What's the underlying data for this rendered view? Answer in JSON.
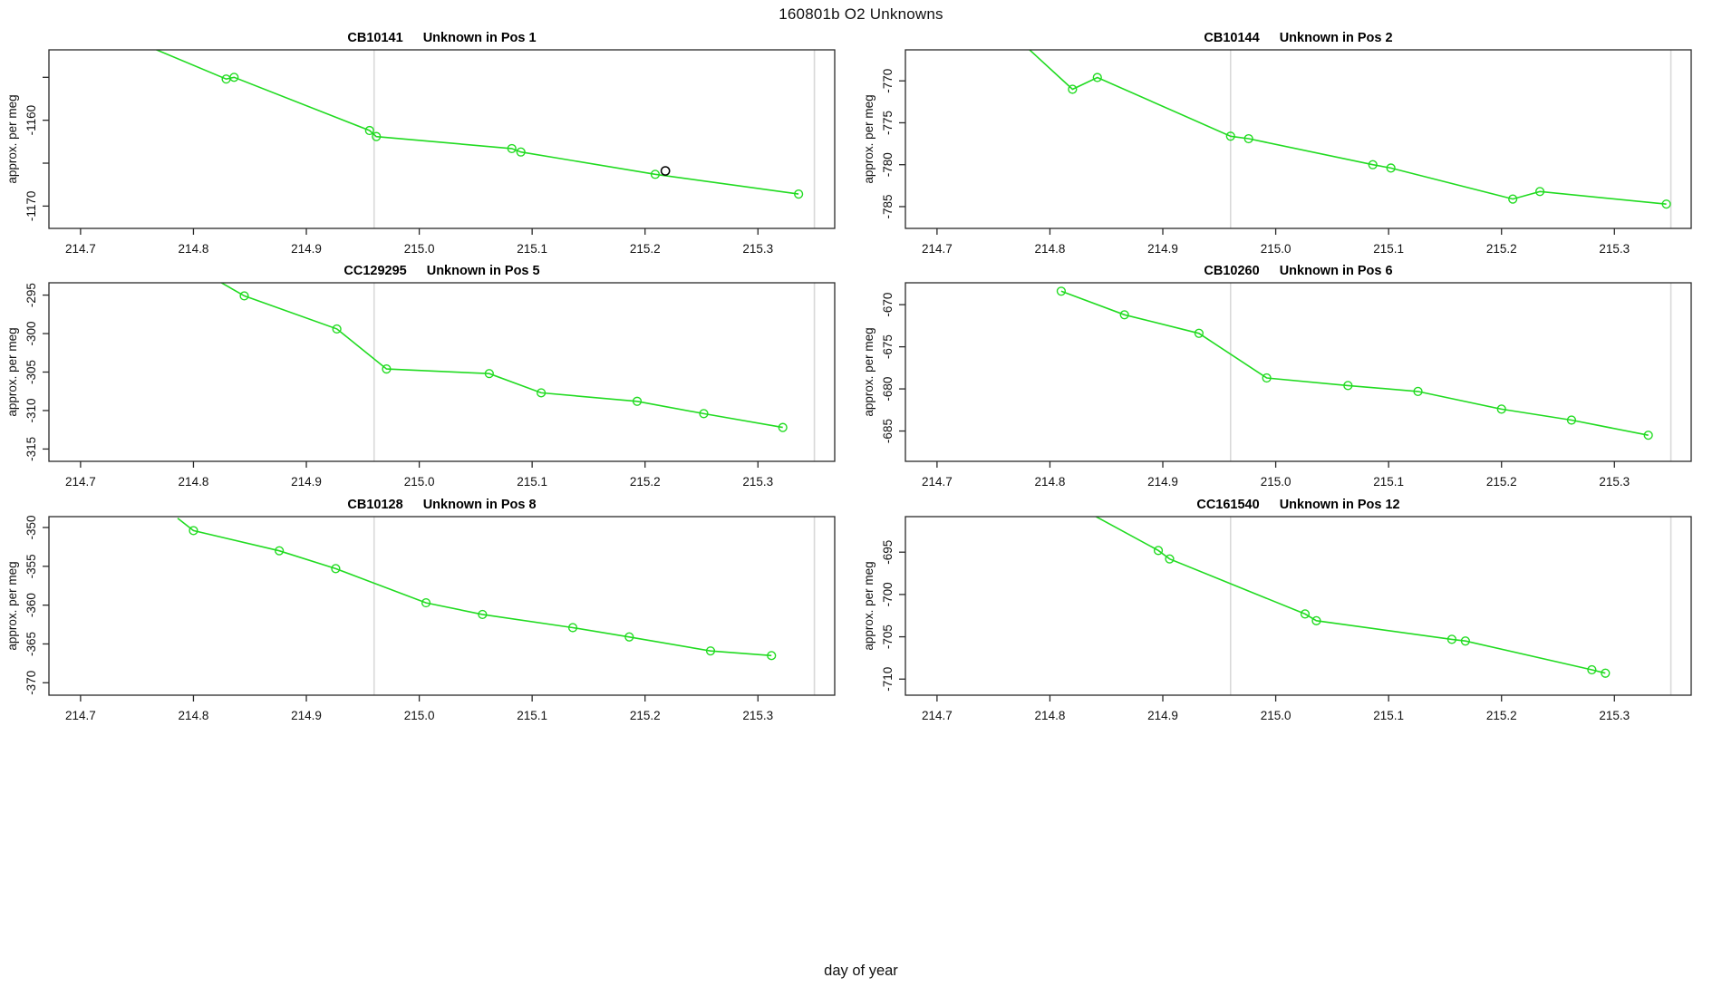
{
  "figure": {
    "title": "160801b  O2 Unknowns",
    "xlabel": "day of year",
    "colors": {
      "series": "#21db21",
      "special_point": "#000000",
      "guide_line": "#d9d9d9",
      "axis": "#2a2a2a",
      "background": "#ffffff"
    }
  },
  "chart_data": [
    {
      "type": "line",
      "title": "CB10141",
      "subtitle": "Unknown in Pos 1",
      "ylabel": "approx. per meg",
      "xlim": [
        214.672,
        215.368
      ],
      "ylim": [
        -1172.6,
        -1151.8
      ],
      "xticks": [
        {
          "v": 214.7,
          "label": "214.7"
        },
        {
          "v": 214.8,
          "label": "214.8"
        },
        {
          "v": 214.9,
          "label": "214.9"
        },
        {
          "v": 215.0,
          "label": "215.0"
        },
        {
          "v": 215.1,
          "label": "215.1"
        },
        {
          "v": 215.2,
          "label": "215.2"
        },
        {
          "v": 215.3,
          "label": "215.3"
        }
      ],
      "yticks": [
        {
          "v": -1155,
          "label": ""
        },
        {
          "v": -1160,
          "label": "-1160"
        },
        {
          "v": -1165,
          "label": ""
        },
        {
          "v": -1170,
          "label": "-1170"
        }
      ],
      "vlines": [
        214.96,
        215.35
      ],
      "line": [
        [
          214.762,
          -1151.5
        ],
        [
          214.829,
          -1155.2
        ],
        [
          214.836,
          -1155.0
        ],
        [
          214.956,
          -1161.2
        ],
        [
          214.962,
          -1161.9
        ],
        [
          215.082,
          -1163.3
        ],
        [
          215.09,
          -1163.7
        ],
        [
          215.209,
          -1166.3
        ],
        [
          215.336,
          -1168.6
        ]
      ],
      "points": [
        [
          214.829,
          -1155.2
        ],
        [
          214.836,
          -1155.0
        ],
        [
          214.956,
          -1161.2
        ],
        [
          214.962,
          -1161.9
        ],
        [
          215.082,
          -1163.3
        ],
        [
          215.09,
          -1163.7
        ],
        [
          215.209,
          -1166.3
        ],
        [
          215.336,
          -1168.6
        ]
      ],
      "special_points": [
        [
          215.218,
          -1165.9
        ]
      ]
    },
    {
      "type": "line",
      "title": "CB10144",
      "subtitle": "Unknown in Pos 2",
      "ylabel": "approx. per meg",
      "xlim": [
        214.672,
        215.368
      ],
      "ylim": [
        -787.6,
        -766.3
      ],
      "xticks": [
        {
          "v": 214.7,
          "label": "214.7"
        },
        {
          "v": 214.8,
          "label": "214.8"
        },
        {
          "v": 214.9,
          "label": "214.9"
        },
        {
          "v": 215.0,
          "label": "215.0"
        },
        {
          "v": 215.1,
          "label": "215.1"
        },
        {
          "v": 215.2,
          "label": "215.2"
        },
        {
          "v": 215.3,
          "label": "215.3"
        }
      ],
      "yticks": [
        {
          "v": -770,
          "label": "-770"
        },
        {
          "v": -775,
          "label": "-775"
        },
        {
          "v": -780,
          "label": "-780"
        },
        {
          "v": -785,
          "label": "-785"
        }
      ],
      "vlines": [
        214.96,
        215.35
      ],
      "line": [
        [
          214.778,
          -765.8
        ],
        [
          214.82,
          -771.0
        ],
        [
          214.842,
          -769.6
        ],
        [
          214.96,
          -776.6
        ],
        [
          214.976,
          -776.9
        ],
        [
          215.086,
          -780.0
        ],
        [
          215.102,
          -780.4
        ],
        [
          215.21,
          -784.1
        ],
        [
          215.234,
          -783.2
        ],
        [
          215.346,
          -784.7
        ]
      ],
      "points": [
        [
          214.82,
          -771.0
        ],
        [
          214.842,
          -769.6
        ],
        [
          214.96,
          -776.6
        ],
        [
          214.976,
          -776.9
        ],
        [
          215.086,
          -780.0
        ],
        [
          215.102,
          -780.4
        ],
        [
          215.21,
          -784.1
        ],
        [
          215.234,
          -783.2
        ],
        [
          215.346,
          -784.7
        ]
      ],
      "special_points": []
    },
    {
      "type": "line",
      "title": "CC129295",
      "subtitle": "Unknown in Pos 5",
      "ylabel": "approx. per meg",
      "xlim": [
        214.672,
        215.368
      ],
      "ylim": [
        -316.6,
        -293.4
      ],
      "xticks": [
        {
          "v": 214.7,
          "label": "214.7"
        },
        {
          "v": 214.8,
          "label": "214.8"
        },
        {
          "v": 214.9,
          "label": "214.9"
        },
        {
          "v": 215.0,
          "label": "215.0"
        },
        {
          "v": 215.1,
          "label": "215.1"
        },
        {
          "v": 215.2,
          "label": "215.2"
        },
        {
          "v": 215.3,
          "label": "215.3"
        }
      ],
      "yticks": [
        {
          "v": -295,
          "label": "-295"
        },
        {
          "v": -300,
          "label": "-300"
        },
        {
          "v": -305,
          "label": "-305"
        },
        {
          "v": -310,
          "label": "-310"
        },
        {
          "v": -315,
          "label": "-315"
        }
      ],
      "vlines": [
        214.96,
        215.35
      ],
      "line": [
        [
          214.82,
          -293.0
        ],
        [
          214.845,
          -295.1
        ],
        [
          214.927,
          -299.4
        ],
        [
          214.971,
          -304.6
        ],
        [
          215.062,
          -305.2
        ],
        [
          215.108,
          -307.7
        ],
        [
          215.193,
          -308.8
        ],
        [
          215.252,
          -310.4
        ],
        [
          215.322,
          -312.2
        ]
      ],
      "points": [
        [
          214.845,
          -295.1
        ],
        [
          214.927,
          -299.4
        ],
        [
          214.971,
          -304.6
        ],
        [
          215.062,
          -305.2
        ],
        [
          215.108,
          -307.7
        ],
        [
          215.193,
          -308.8
        ],
        [
          215.252,
          -310.4
        ],
        [
          215.322,
          -312.2
        ]
      ],
      "special_points": []
    },
    {
      "type": "line",
      "title": "CB10260",
      "subtitle": "Unknown in Pos 6",
      "ylabel": "approx. per meg",
      "xlim": [
        214.672,
        215.368
      ],
      "ylim": [
        -688.6,
        -667.4
      ],
      "xticks": [
        {
          "v": 214.7,
          "label": "214.7"
        },
        {
          "v": 214.8,
          "label": "214.8"
        },
        {
          "v": 214.9,
          "label": "214.9"
        },
        {
          "v": 215.0,
          "label": "215.0"
        },
        {
          "v": 215.1,
          "label": "215.1"
        },
        {
          "v": 215.2,
          "label": "215.2"
        },
        {
          "v": 215.3,
          "label": "215.3"
        }
      ],
      "yticks": [
        {
          "v": -670,
          "label": "-670"
        },
        {
          "v": -675,
          "label": "-675"
        },
        {
          "v": -680,
          "label": "-680"
        },
        {
          "v": -685,
          "label": "-685"
        }
      ],
      "vlines": [
        214.96,
        215.35
      ],
      "line": [
        [
          214.81,
          -668.4
        ],
        [
          214.866,
          -671.2
        ],
        [
          214.932,
          -673.4
        ],
        [
          214.992,
          -678.7
        ],
        [
          215.064,
          -679.6
        ],
        [
          215.126,
          -680.3
        ],
        [
          215.2,
          -682.4
        ],
        [
          215.262,
          -683.7
        ],
        [
          215.33,
          -685.5
        ]
      ],
      "points": [
        [
          214.81,
          -668.4
        ],
        [
          214.866,
          -671.2
        ],
        [
          214.932,
          -673.4
        ],
        [
          214.992,
          -678.7
        ],
        [
          215.064,
          -679.6
        ],
        [
          215.126,
          -680.3
        ],
        [
          215.2,
          -682.4
        ],
        [
          215.262,
          -683.7
        ],
        [
          215.33,
          -685.5
        ]
      ],
      "special_points": []
    },
    {
      "type": "line",
      "title": "CB10128",
      "subtitle": "Unknown in Pos 8",
      "ylabel": "approx. per meg",
      "xlim": [
        214.672,
        215.368
      ],
      "ylim": [
        -371.6,
        -348.6
      ],
      "xticks": [
        {
          "v": 214.7,
          "label": "214.7"
        },
        {
          "v": 214.8,
          "label": "214.8"
        },
        {
          "v": 214.9,
          "label": "214.9"
        },
        {
          "v": 215.0,
          "label": "215.0"
        },
        {
          "v": 215.1,
          "label": "215.1"
        },
        {
          "v": 215.2,
          "label": "215.2"
        },
        {
          "v": 215.3,
          "label": "215.3"
        }
      ],
      "yticks": [
        {
          "v": -350,
          "label": "-350"
        },
        {
          "v": -355,
          "label": "-355"
        },
        {
          "v": -360,
          "label": "-360"
        },
        {
          "v": -365,
          "label": "-365"
        },
        {
          "v": -370,
          "label": "-370"
        }
      ],
      "vlines": [
        214.96,
        215.35
      ],
      "line": [
        [
          214.786,
          -348.8
        ],
        [
          214.8,
          -350.4
        ],
        [
          214.876,
          -353.0
        ],
        [
          214.926,
          -355.3
        ],
        [
          215.006,
          -359.7
        ],
        [
          215.056,
          -361.2
        ],
        [
          215.136,
          -362.9
        ],
        [
          215.186,
          -364.1
        ],
        [
          215.258,
          -365.9
        ],
        [
          215.312,
          -366.5
        ]
      ],
      "points": [
        [
          214.8,
          -350.4
        ],
        [
          214.876,
          -353.0
        ],
        [
          214.926,
          -355.3
        ],
        [
          215.006,
          -359.7
        ],
        [
          215.056,
          -361.2
        ],
        [
          215.136,
          -362.9
        ],
        [
          215.186,
          -364.1
        ],
        [
          215.258,
          -365.9
        ],
        [
          215.312,
          -366.5
        ]
      ],
      "special_points": []
    },
    {
      "type": "line",
      "title": "CC161540",
      "subtitle": "Unknown in Pos 12",
      "ylabel": "approx. per meg",
      "xlim": [
        214.672,
        215.368
      ],
      "ylim": [
        -711.9,
        -690.8
      ],
      "xticks": [
        {
          "v": 214.7,
          "label": "214.7"
        },
        {
          "v": 214.8,
          "label": "214.8"
        },
        {
          "v": 214.9,
          "label": "214.9"
        },
        {
          "v": 215.0,
          "label": "215.0"
        },
        {
          "v": 215.1,
          "label": "215.1"
        },
        {
          "v": 215.2,
          "label": "215.2"
        },
        {
          "v": 215.3,
          "label": "215.3"
        }
      ],
      "yticks": [
        {
          "v": -695,
          "label": "-695"
        },
        {
          "v": -700,
          "label": "-700"
        },
        {
          "v": -705,
          "label": "-705"
        },
        {
          "v": -710,
          "label": "-710"
        }
      ],
      "vlines": [
        214.96,
        215.35
      ],
      "line": [
        [
          214.838,
          -690.6
        ],
        [
          214.896,
          -694.8
        ],
        [
          214.906,
          -695.8
        ],
        [
          215.026,
          -702.3
        ],
        [
          215.036,
          -703.1
        ],
        [
          215.156,
          -705.3
        ],
        [
          215.168,
          -705.5
        ],
        [
          215.28,
          -708.9
        ],
        [
          215.292,
          -709.3
        ]
      ],
      "points": [
        [
          214.896,
          -694.8
        ],
        [
          214.906,
          -695.8
        ],
        [
          215.026,
          -702.3
        ],
        [
          215.036,
          -703.1
        ],
        [
          215.156,
          -705.3
        ],
        [
          215.168,
          -705.5
        ],
        [
          215.28,
          -708.9
        ],
        [
          215.292,
          -709.3
        ]
      ],
      "special_points": []
    }
  ]
}
